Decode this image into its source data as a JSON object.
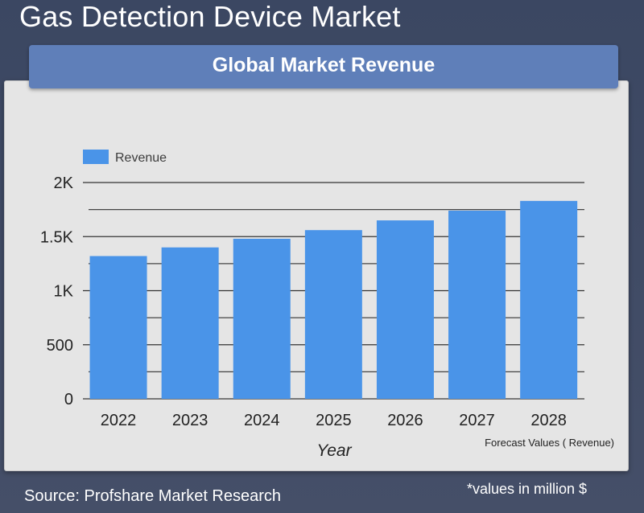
{
  "header": {
    "title": "Gas Detection Device Market",
    "banner": "Global Market Revenue"
  },
  "footer": {
    "source": "Source: Profshare Market Research",
    "note": "*values in million $"
  },
  "colors": {
    "bar": "#4a94e8",
    "banner": "#5f7fb9",
    "background": "#3b4762",
    "panel": "#e5e5e5"
  },
  "chart_data": {
    "type": "bar",
    "categories": [
      "2022",
      "2023",
      "2024",
      "2025",
      "2026",
      "2027",
      "2028"
    ],
    "series": [
      {
        "name": "Revenue",
        "values": [
          1320,
          1400,
          1480,
          1560,
          1650,
          1740,
          1830
        ]
      }
    ],
    "xlabel": "Year",
    "ylabel": "",
    "ylim": [
      0,
      2000
    ],
    "yticks": [
      0,
      500,
      1000,
      1500,
      2000
    ],
    "ytick_labels": [
      "0",
      "500",
      "1K",
      "1.5K",
      "2K"
    ],
    "minor_gridlines_per_major": 2,
    "grid": true,
    "legend": "top-left",
    "annotation": "Forecast Values ( Revenue)"
  }
}
